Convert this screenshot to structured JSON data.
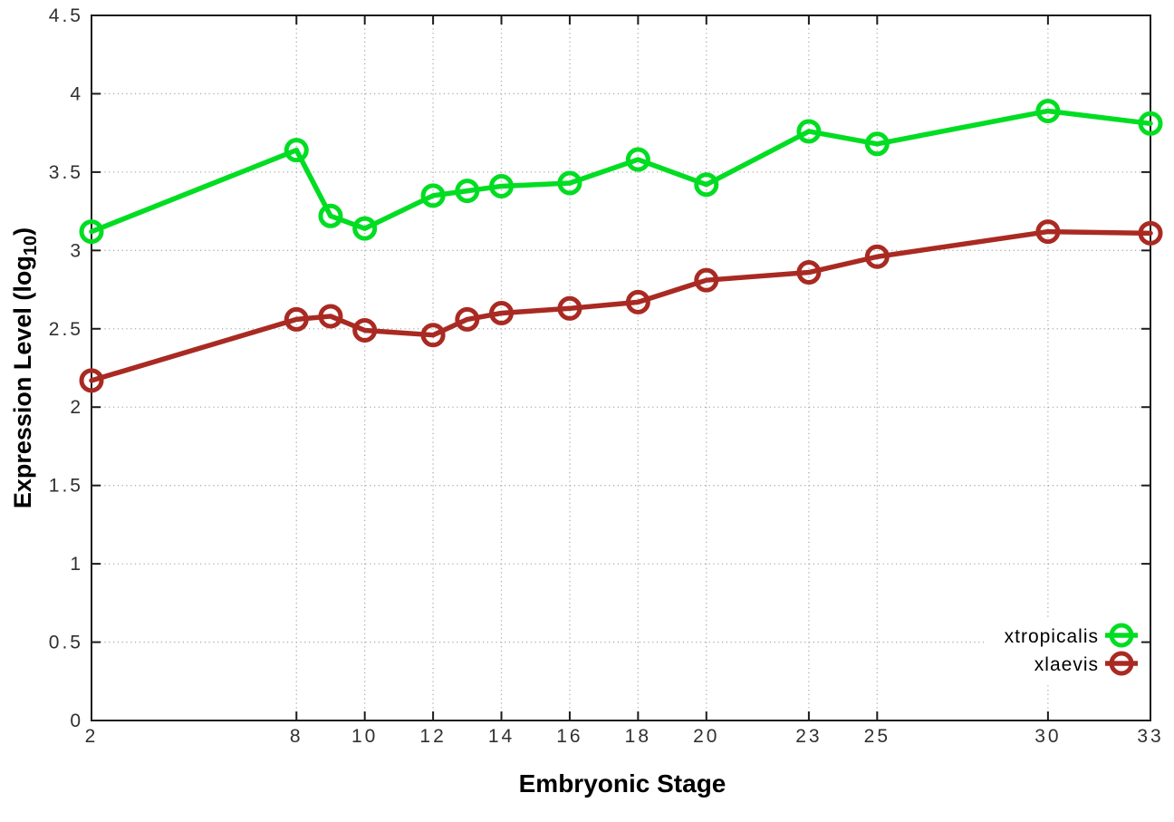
{
  "chart_data": {
    "type": "line",
    "title": "",
    "xlabel": "Embryonic Stage",
    "ylabel": {
      "main": "Expression Level (log",
      "sub": "10",
      "end": ")"
    },
    "xlim": [
      2,
      33
    ],
    "ylim": [
      0,
      4.5
    ],
    "grid": true,
    "legend_position": "inside bottom-right",
    "marker_style": "open-circle",
    "x": [
      2,
      8,
      9,
      10,
      12,
      13,
      14,
      16,
      18,
      20,
      23,
      25,
      30,
      33
    ],
    "x_ticks": {
      "values": [
        2,
        8,
        10,
        12,
        14,
        16,
        18,
        20,
        23,
        25,
        30,
        33
      ],
      "labels": [
        "2",
        "8",
        "10",
        "12",
        "14",
        "16",
        "18",
        "20",
        "23",
        "25",
        "30",
        "33"
      ]
    },
    "y_ticks": {
      "values": [
        0,
        0.5,
        1,
        1.5,
        2,
        2.5,
        3,
        3.5,
        4,
        4.5
      ],
      "labels": [
        "0",
        "0.5",
        "1",
        "1.5",
        "2",
        "2.5",
        "3",
        "3.5",
        "4",
        "4.5"
      ]
    },
    "series": [
      {
        "name": "xtropicalis",
        "color": "#00dd22",
        "values": [
          3.12,
          3.64,
          3.22,
          3.14,
          3.35,
          3.38,
          3.41,
          3.43,
          3.58,
          3.42,
          3.76,
          3.68,
          3.89,
          3.81
        ]
      },
      {
        "name": "xlaevis",
        "color": "#a92a22",
        "values": [
          2.17,
          2.56,
          2.58,
          2.49,
          2.46,
          2.56,
          2.6,
          2.63,
          2.67,
          2.81,
          2.86,
          2.96,
          3.12,
          3.11
        ]
      }
    ]
  },
  "style": {
    "background": "#ffffff",
    "axis_color": "#1c1c1c",
    "grid_color": "#ababab",
    "tick_label_color": "#303030",
    "title_color": "#000000"
  }
}
